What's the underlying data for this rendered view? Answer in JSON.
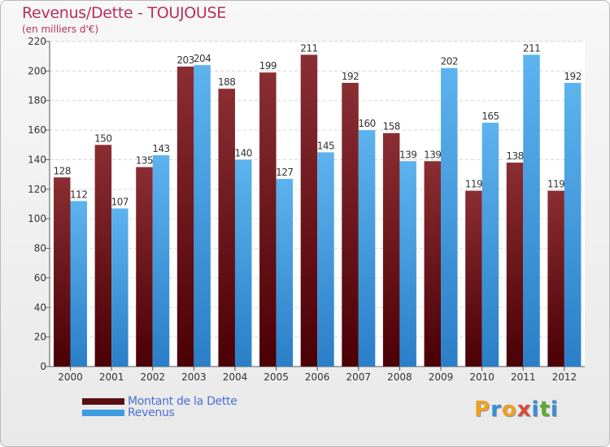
{
  "chart_data": {
    "type": "bar",
    "title": "Revenus/Dette - TOUJOUSE",
    "subtitle": "(en milliers d'€)",
    "categories": [
      "2000",
      "2001",
      "2002",
      "2003",
      "2004",
      "2005",
      "2006",
      "2007",
      "2008",
      "2009",
      "2010",
      "2011",
      "2012"
    ],
    "series": [
      {
        "name": "Montant de la Dette",
        "values": [
          128,
          150,
          135,
          203,
          188,
          199,
          211,
          192,
          158,
          139,
          119,
          138,
          119
        ],
        "color": "#7a1a1f"
      },
      {
        "name": "Revenus",
        "values": [
          112,
          107,
          143,
          204,
          140,
          127,
          145,
          160,
          139,
          202,
          165,
          211,
          192
        ],
        "color": "#3d9be0"
      }
    ],
    "ylim": [
      0,
      220
    ],
    "yticks": [
      0,
      20,
      40,
      60,
      80,
      100,
      120,
      140,
      160,
      180,
      200,
      220
    ],
    "grid": true,
    "legend_position": "bottom-left"
  },
  "logo": {
    "text": "Proxiti",
    "letters": [
      {
        "ch": "P",
        "color": "#f0a020"
      },
      {
        "ch": "r",
        "color": "#3a8fd8"
      },
      {
        "ch": "o",
        "color": "#f0a020"
      },
      {
        "ch": "x",
        "color": "#d84a3a"
      },
      {
        "ch": "i",
        "color": "#3a8fd8"
      },
      {
        "ch": "t",
        "color": "#5aaa3a"
      },
      {
        "ch": "i",
        "color": "#3a8fd8"
      }
    ]
  }
}
